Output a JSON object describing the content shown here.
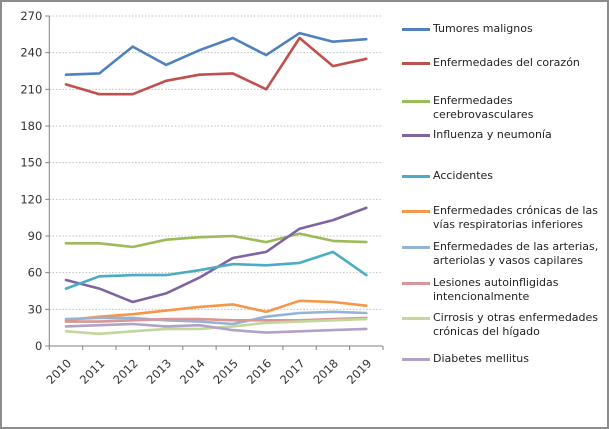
{
  "chart_data": {
    "type": "line",
    "title": "",
    "xlabel": "",
    "ylabel": "",
    "categories": [
      "2010",
      "2011",
      "2012",
      "2013",
      "2014",
      "2015",
      "2016",
      "2017",
      "2018",
      "2019"
    ],
    "ylim": [
      0,
      270
    ],
    "ytick_step": 30,
    "y_tick_labels": [
      "0",
      "30",
      "60",
      "90",
      "120",
      "150",
      "180",
      "210",
      "240",
      "270"
    ],
    "grid": true,
    "gridline_style": "dotted",
    "legend_position": "right",
    "colors": {
      "grid": "#bfbfbf",
      "axis": "#808080",
      "tick_label": "#333333",
      "frame_border": "#8c8c8c",
      "background": "#ffffff"
    },
    "series": [
      {
        "name": "Tumores malignos",
        "color": "#4F81BD",
        "values": [
          222,
          223,
          245,
          230,
          242,
          252,
          238,
          256,
          249,
          251
        ]
      },
      {
        "name": "Enfermedades del corazón",
        "color": "#C0504D",
        "values": [
          214,
          206,
          206,
          217,
          222,
          223,
          210,
          252,
          229,
          235
        ]
      },
      {
        "name": "Enfermedades cerebrovasculares",
        "color": "#9BBB59",
        "values": [
          84,
          84,
          81,
          87,
          89,
          90,
          85,
          92,
          86,
          85
        ]
      },
      {
        "name": "Influenza y neumonía",
        "color": "#8064A2",
        "values": [
          54,
          47,
          36,
          43,
          56,
          72,
          77,
          96,
          103,
          113
        ]
      },
      {
        "name": "Accidentes",
        "color": "#4BACC6",
        "values": [
          47,
          57,
          58,
          58,
          62,
          67,
          66,
          68,
          77,
          58
        ]
      },
      {
        "name": "Enfermedades crónicas de las vías respiratorias inferiores",
        "color": "#F79646",
        "values": [
          21,
          24,
          26,
          29,
          32,
          34,
          28,
          37,
          36,
          33
        ]
      },
      {
        "name": "Enfermedades de las arterias, arteriolas y vasos capilares",
        "color": "#95B3D7",
        "values": [
          22,
          23,
          23,
          21,
          20,
          18,
          24,
          27,
          28,
          27
        ]
      },
      {
        "name": "Lesiones autoinfligidas intencionalmente",
        "color": "#D99694",
        "values": [
          20,
          20,
          21,
          22,
          22,
          21,
          21,
          21,
          22,
          23
        ]
      },
      {
        "name": "Cirrosis y otras enfermedades crónicas del hígado",
        "color": "#C3D69B",
        "values": [
          12,
          10,
          12,
          14,
          14,
          16,
          19,
          20,
          21,
          22
        ]
      },
      {
        "name": "Diabetes mellitus",
        "color": "#B3A2C7",
        "values": [
          16,
          17,
          18,
          16,
          17,
          13,
          11,
          12,
          13,
          14
        ]
      }
    ]
  }
}
